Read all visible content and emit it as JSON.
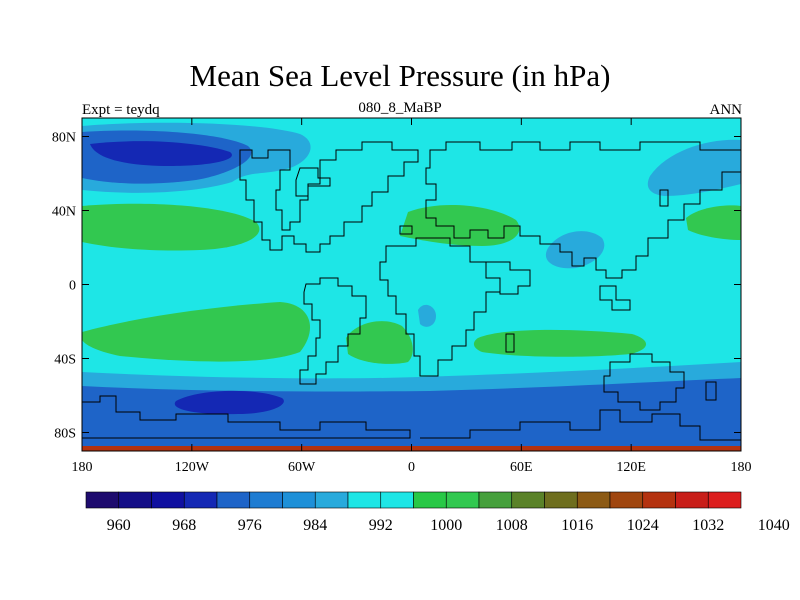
{
  "title": "Mean Sea Level Pressure (in hPa)",
  "subtitle_left": "Expt = teydq",
  "subtitle_center": "080_8_MaBP",
  "subtitle_right": "ANN",
  "x_ticks": [
    {
      "value": -180,
      "label": "180"
    },
    {
      "value": -120,
      "label": "120W"
    },
    {
      "value": -60,
      "label": "60W"
    },
    {
      "value": 0,
      "label": "0"
    },
    {
      "value": 60,
      "label": "60E"
    },
    {
      "value": 120,
      "label": "120E"
    },
    {
      "value": 180,
      "label": "180"
    }
  ],
  "y_ticks": [
    {
      "value": 80,
      "label": "80N"
    },
    {
      "value": 40,
      "label": "40N"
    },
    {
      "value": 0,
      "label": "0"
    },
    {
      "value": -40,
      "label": "40S"
    },
    {
      "value": -80,
      "label": "80S"
    }
  ],
  "colorbar": {
    "colors": [
      "#1e0b6e",
      "#140e87",
      "#1010a0",
      "#1428b4",
      "#1e64c8",
      "#1e7cd2",
      "#1e90d8",
      "#28aadc",
      "#1ee6e6",
      "#1ee6e6",
      "#28c846",
      "#32c850",
      "#46a03c",
      "#5a8228",
      "#6e6e1e",
      "#8c5a14",
      "#a0460f",
      "#b4320f",
      "#c81e19",
      "#dc1e1e"
    ],
    "labels": [
      {
        "index": 1,
        "label": "960"
      },
      {
        "index": 3,
        "label": "968"
      },
      {
        "index": 5,
        "label": "976"
      },
      {
        "index": 7,
        "label": "984"
      },
      {
        "index": 9,
        "label": "992"
      },
      {
        "index": 11,
        "label": "1000"
      },
      {
        "index": 13,
        "label": "1008"
      },
      {
        "index": 15,
        "label": "1016"
      },
      {
        "index": 17,
        "label": "1024"
      },
      {
        "index": 19,
        "label": "1032"
      },
      {
        "index": 21,
        "label": "1040"
      }
    ]
  },
  "legend_levels": {
    "deep_low": "#1428b4",
    "low": "#1e64c8",
    "mid_low": "#28aadc",
    "background": "#1ee6e6",
    "high": "#32c850",
    "very_high": "#b4320f"
  }
}
